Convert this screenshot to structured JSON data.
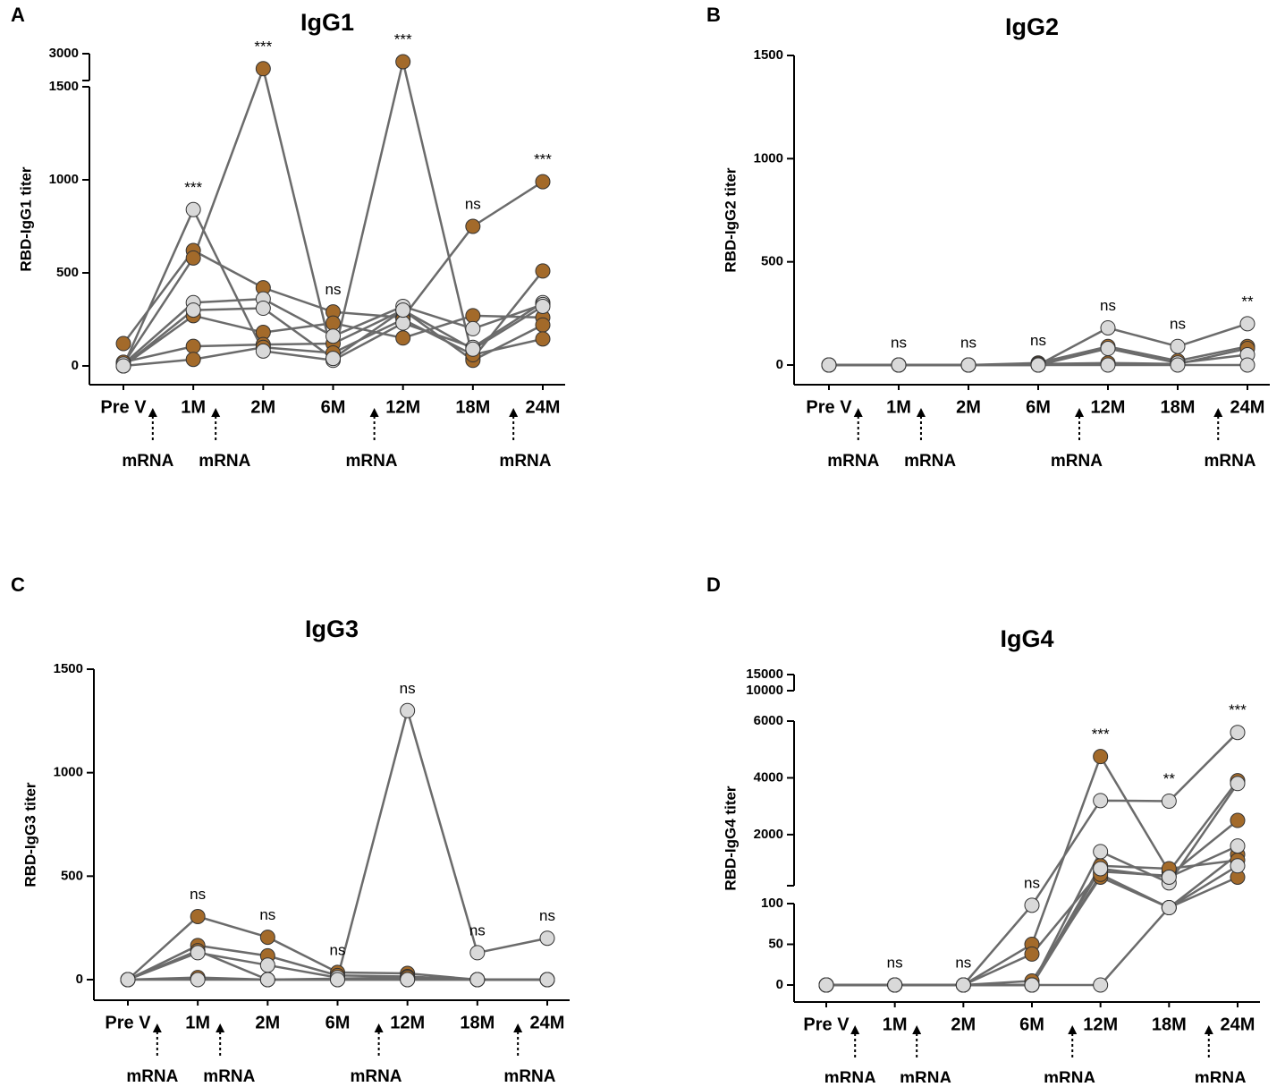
{
  "chart_data": [
    {
      "type": "line",
      "panel": "A",
      "title": "IgG1",
      "ylabel": "RBD-IgG1 titer",
      "categories": [
        "Pre V",
        "1M",
        "2M",
        "6M",
        "12M",
        "18M",
        "24M"
      ],
      "ysegments": [
        {
          "ylim": [
            0,
            1500
          ],
          "yticks": [
            0,
            500,
            1000,
            1500
          ]
        },
        {
          "ylim": [
            2500,
            3000
          ],
          "yticks": [
            3000
          ]
        }
      ],
      "annotations": [
        null,
        "***",
        "***",
        "ns",
        "***",
        "ns",
        "***"
      ],
      "dose_labels": [
        "mRNA",
        "mRNA",
        "mRNA",
        "mRNA"
      ],
      "line_color": "#6b6b6b",
      "series": [
        {
          "color": "#a36a2a",
          "values": [
            120,
            620,
            420,
            290,
            260,
            750,
            990
          ]
        },
        {
          "color": "#a36a2a",
          "values": [
            10,
            580,
            2720,
            40,
            2850,
            40,
            510
          ]
        },
        {
          "color": "#a36a2a",
          "values": [
            0,
            270,
            180,
            230,
            150,
            270,
            260
          ]
        },
        {
          "color": "#a36a2a",
          "values": [
            20,
            105,
            115,
            120,
            300,
            30,
            220
          ]
        },
        {
          "color": "#a36a2a",
          "values": [
            0,
            35,
            100,
            70,
            250,
            60,
            145
          ]
        },
        {
          "color": "#d9d9d9",
          "values": [
            0,
            840,
            80,
            30,
            230,
            100,
            340
          ]
        },
        {
          "color": "#d9d9d9",
          "values": [
            10,
            340,
            360,
            160,
            320,
            200,
            330
          ]
        },
        {
          "color": "#d9d9d9",
          "values": [
            0,
            300,
            310,
            40,
            300,
            90,
            320
          ]
        }
      ]
    },
    {
      "type": "line",
      "panel": "B",
      "title": "IgG2",
      "ylabel": "RBD-IgG2 titer",
      "categories": [
        "Pre V",
        "1M",
        "2M",
        "6M",
        "12M",
        "18M",
        "24M"
      ],
      "ysegments": [
        {
          "ylim": [
            0,
            1500
          ],
          "yticks": [
            0,
            500,
            1000,
            1500
          ]
        }
      ],
      "annotations": [
        null,
        "ns",
        "ns",
        "ns",
        "ns",
        "ns",
        "**"
      ],
      "dose_labels": [
        "mRNA",
        "mRNA",
        "mRNA",
        "mRNA"
      ],
      "line_color": "#6b6b6b",
      "series": [
        {
          "color": "#a36a2a",
          "values": [
            0,
            0,
            0,
            10,
            90,
            20,
            90
          ]
        },
        {
          "color": "#a36a2a",
          "values": [
            0,
            0,
            0,
            5,
            10,
            5,
            80
          ]
        },
        {
          "color": "#d9d9d9",
          "values": [
            0,
            0,
            0,
            0,
            180,
            90,
            200
          ]
        },
        {
          "color": "#d9d9d9",
          "values": [
            0,
            0,
            0,
            0,
            80,
            10,
            50
          ]
        },
        {
          "color": "#d9d9d9",
          "values": [
            0,
            0,
            0,
            0,
            0,
            0,
            0
          ]
        }
      ]
    },
    {
      "type": "line",
      "panel": "C",
      "title": "IgG3",
      "ylabel": "RBD-IgG3 titer",
      "categories": [
        "Pre V",
        "1M",
        "2M",
        "6M",
        "12M",
        "18M",
        "24M"
      ],
      "ysegments": [
        {
          "ylim": [
            0,
            1500
          ],
          "yticks": [
            0,
            500,
            1000,
            1500
          ]
        }
      ],
      "annotations": [
        null,
        "ns",
        "ns",
        "ns",
        "ns",
        "ns",
        "ns"
      ],
      "dose_labels": [
        "mRNA",
        "mRNA",
        "mRNA",
        "mRNA"
      ],
      "line_color": "#6b6b6b",
      "series": [
        {
          "color": "#a36a2a",
          "values": [
            0,
            305,
            205,
            35,
            30,
            0,
            0
          ]
        },
        {
          "color": "#a36a2a",
          "values": [
            0,
            165,
            115,
            20,
            15,
            0,
            0
          ]
        },
        {
          "color": "#a36a2a",
          "values": [
            0,
            140,
            0,
            5,
            10,
            0,
            0
          ]
        },
        {
          "color": "#a36a2a",
          "values": [
            0,
            10,
            0,
            0,
            0,
            0,
            0
          ]
        },
        {
          "color": "#d9d9d9",
          "values": [
            0,
            130,
            70,
            10,
            1300,
            130,
            200
          ]
        },
        {
          "color": "#d9d9d9",
          "values": [
            0,
            0,
            0,
            0,
            0,
            0,
            0
          ]
        }
      ]
    },
    {
      "type": "line",
      "panel": "D",
      "title": "IgG4",
      "ylabel": "RBD-IgG4 titer",
      "categories": [
        "Pre V",
        "1M",
        "2M",
        "6M",
        "12M",
        "18M",
        "24M"
      ],
      "ysegments": [
        {
          "ylim": [
            0,
            100
          ],
          "yticks": [
            0,
            50,
            100
          ]
        },
        {
          "ylim": [
            200,
            6000
          ],
          "yticks": [
            2000,
            4000,
            6000
          ]
        },
        {
          "ylim": [
            10000,
            15000
          ],
          "yticks": [
            10000,
            15000
          ]
        }
      ],
      "annotations": [
        null,
        "ns",
        "ns",
        "ns",
        "***",
        "**",
        "***"
      ],
      "dose_labels": [
        "mRNA",
        "mRNA",
        "mRNA",
        "mRNA"
      ],
      "line_color": "#6b6b6b",
      "series": [
        {
          "color": "#a36a2a",
          "values": [
            0,
            0,
            0,
            50,
            4750,
            700,
            3900
          ]
        },
        {
          "color": "#a36a2a",
          "values": [
            0,
            0,
            0,
            38,
            700,
            550,
            2500
          ]
        },
        {
          "color": "#a36a2a",
          "values": [
            0,
            0,
            0,
            5,
            500,
            95,
            1300
          ]
        },
        {
          "color": "#a36a2a",
          "values": [
            0,
            0,
            0,
            0,
            900,
            800,
            1100
          ]
        },
        {
          "color": "#a36a2a",
          "values": [
            0,
            0,
            0,
            0,
            600,
            95,
            500
          ]
        },
        {
          "color": "#d9d9d9",
          "values": [
            0,
            0,
            0,
            98,
            3200,
            3180,
            5600
          ]
        },
        {
          "color": "#d9d9d9",
          "values": [
            0,
            0,
            0,
            0,
            1400,
            300,
            3800
          ]
        },
        {
          "color": "#d9d9d9",
          "values": [
            0,
            0,
            0,
            0,
            0,
            95,
            900
          ]
        },
        {
          "color": "#d9d9d9",
          "values": [
            0,
            0,
            0,
            0,
            800,
            500,
            1600
          ]
        }
      ]
    }
  ]
}
